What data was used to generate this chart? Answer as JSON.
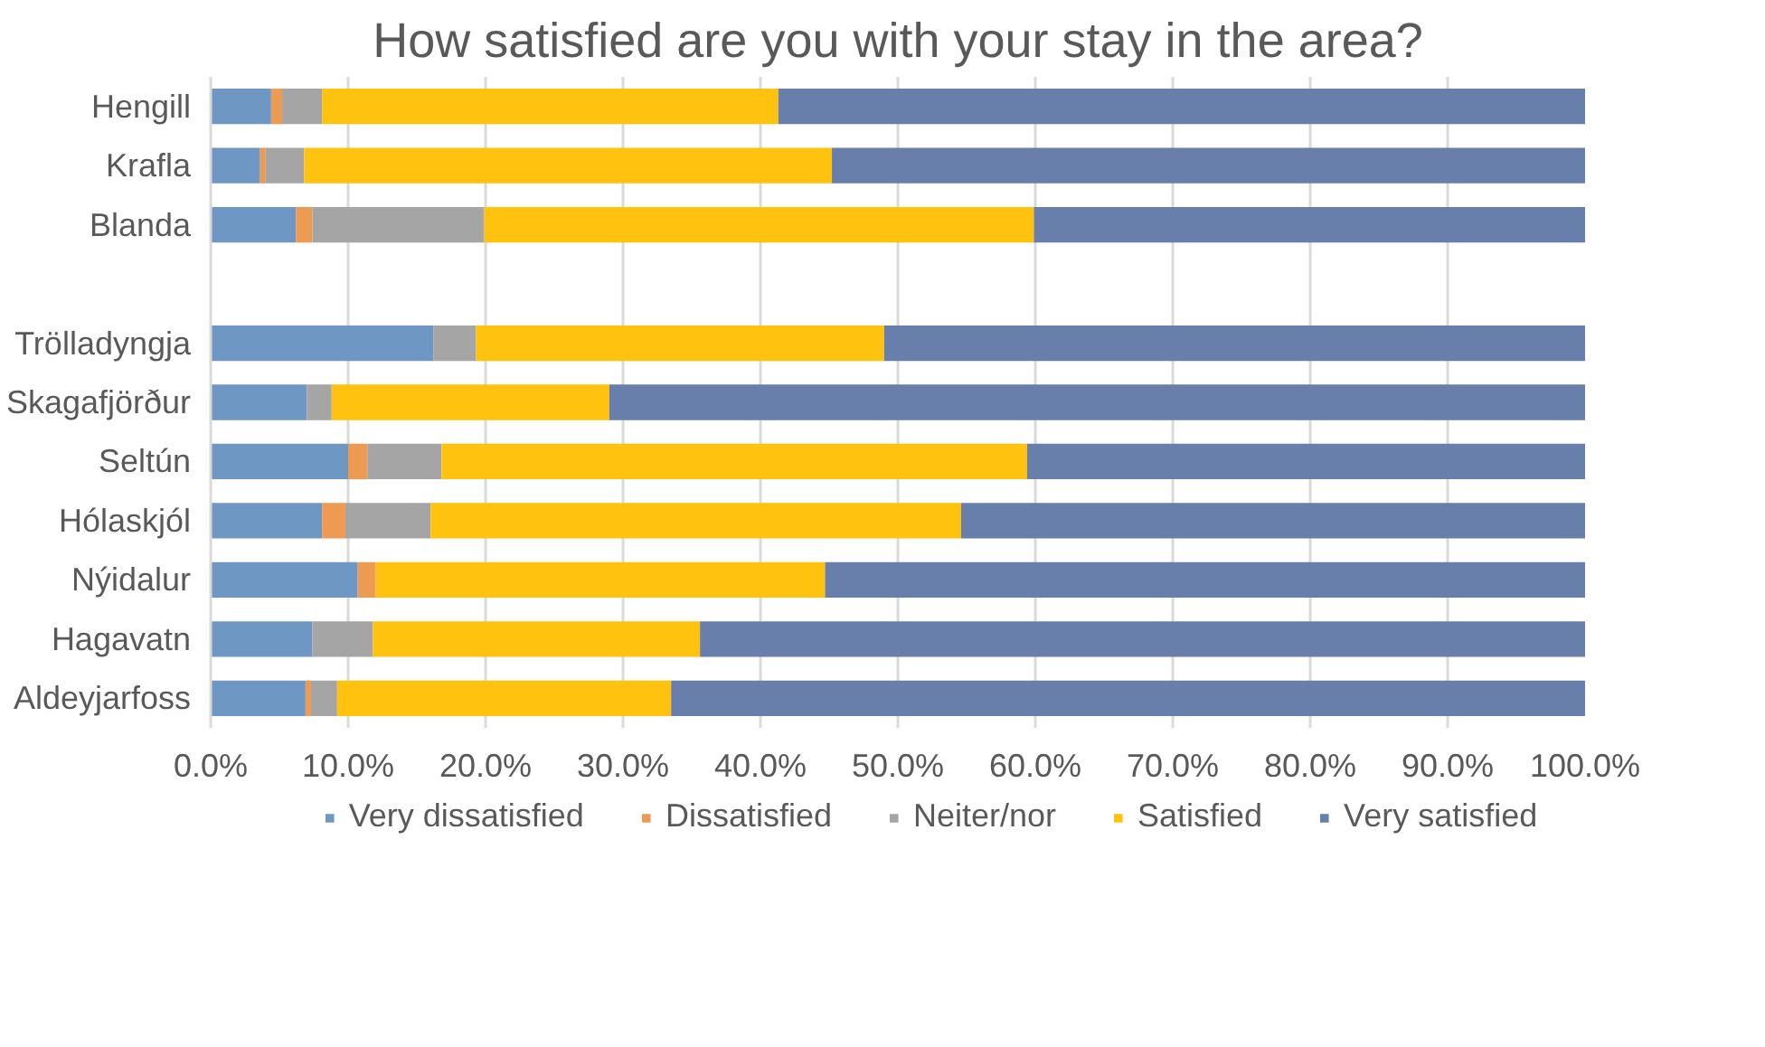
{
  "chart_data": {
    "type": "bar",
    "orientation": "horizontal",
    "stacked": true,
    "title": "How satisfied are you with your stay in the area?",
    "categories": [
      "Hengill",
      "Krafla",
      "Blanda",
      null,
      "Trölladyngja",
      "Skagafjörður",
      "Seltún",
      "Hólaskjól",
      "Nýidalur",
      "Hagavatn",
      "Aldeyjarfoss"
    ],
    "series": [
      {
        "name": "Very dissatisfied",
        "color": "#6f97c3",
        "values": [
          4.4,
          3.6,
          6.2,
          null,
          16.2,
          7.0,
          10.0,
          8.1,
          10.7,
          7.4,
          6.9
        ]
      },
      {
        "name": "Dissatisfied",
        "color": "#ed9a52",
        "values": [
          0.8,
          0.4,
          1.2,
          null,
          0,
          0,
          1.4,
          1.7,
          1.3,
          0,
          0.4
        ]
      },
      {
        "name": "Neiter/nor",
        "color": "#a5a5a5",
        "values": [
          2.9,
          2.8,
          12.5,
          null,
          3.1,
          1.8,
          5.4,
          6.2,
          0,
          4.4,
          1.9
        ]
      },
      {
        "name": "Satisfied",
        "color": "#ffc20f",
        "values": [
          33.2,
          38.4,
          40.0,
          null,
          29.7,
          20.2,
          42.6,
          38.6,
          32.7,
          23.8,
          24.3
        ]
      },
      {
        "name": "Very satisfied",
        "color": "#687fac",
        "values": [
          58.7,
          54.8,
          40.1,
          null,
          51.0,
          71.0,
          40.6,
          45.4,
          55.3,
          64.4,
          66.5
        ]
      }
    ],
    "xlim": [
      0,
      100
    ],
    "xticks": [
      {
        "value": 0,
        "label": "0.0%"
      },
      {
        "value": 10,
        "label": "10.0%"
      },
      {
        "value": 20,
        "label": "20.0%"
      },
      {
        "value": 30,
        "label": "30.0%"
      },
      {
        "value": 40,
        "label": "40.0%"
      },
      {
        "value": 50,
        "label": "50.0%"
      },
      {
        "value": 60,
        "label": "60.0%"
      },
      {
        "value": 70,
        "label": "70.0%"
      },
      {
        "value": 80,
        "label": "80.0%"
      },
      {
        "value": 90,
        "label": "90.0%"
      },
      {
        "value": 100,
        "label": "100.0%"
      }
    ],
    "grid": "x",
    "legend": "bottom"
  }
}
